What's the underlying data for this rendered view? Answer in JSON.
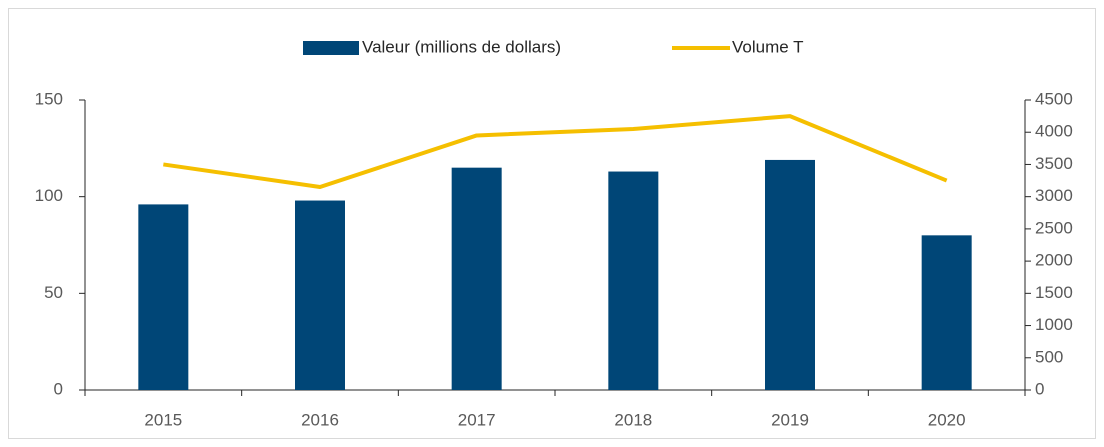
{
  "chart_data": {
    "type": "bar",
    "categories": [
      "2015",
      "2016",
      "2017",
      "2018",
      "2019",
      "2020"
    ],
    "series": [
      {
        "name": "Valeur (millions de dollars)",
        "type": "bar",
        "color": "#004677",
        "axis": "y",
        "values": [
          96,
          98,
          115,
          113,
          119,
          80
        ]
      },
      {
        "name": "Volume T",
        "type": "line",
        "color": "#f5bf00",
        "axis": "y2",
        "values": [
          3500,
          3150,
          3950,
          4050,
          4250,
          3250
        ]
      }
    ],
    "ylim": [
      0,
      150
    ],
    "yticks": [
      0,
      50,
      100,
      150
    ],
    "y2lim": [
      0,
      4500
    ],
    "y2ticks": [
      0,
      500,
      1000,
      1500,
      2000,
      2500,
      3000,
      3500,
      4000,
      4500
    ],
    "legend": "top",
    "grid": false
  }
}
